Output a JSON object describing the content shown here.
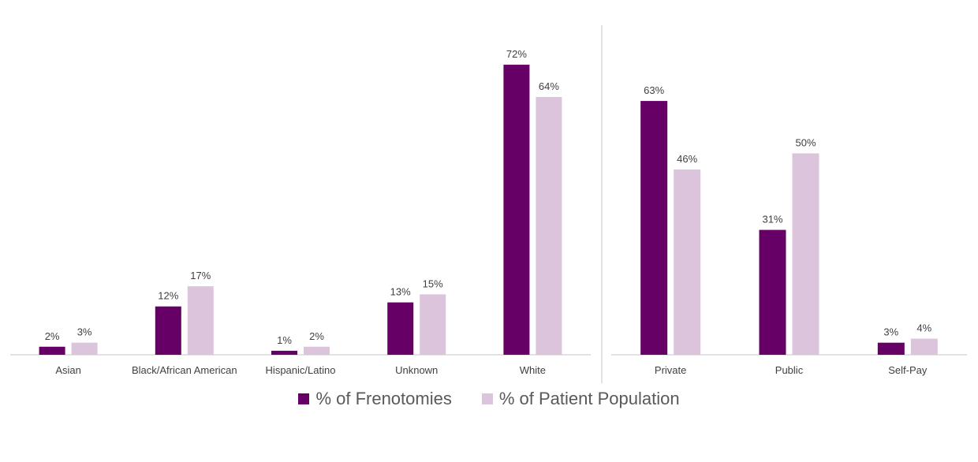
{
  "colors": {
    "frenotomies": "#660066",
    "patient_population": "#dcc4dc",
    "axis": "#d9d9d9",
    "text": "#404040"
  },
  "legend": {
    "items": [
      {
        "label": "% of Frenotomies"
      },
      {
        "label": "% of Patient Population"
      }
    ],
    "position": "bottom"
  },
  "chart_data": [
    {
      "type": "bar",
      "categories": [
        "Asian",
        "Black/African American",
        "Hispanic/Latino",
        "Unknown",
        "White"
      ],
      "series": [
        {
          "name": "% of Frenotomies",
          "values": [
            2,
            12,
            1,
            13,
            72
          ],
          "labels": [
            "2%",
            "12%",
            "1%",
            "13%",
            "72%"
          ]
        },
        {
          "name": "% of Patient Population",
          "values": [
            3,
            17,
            2,
            15,
            64
          ],
          "labels": [
            "3%",
            "17%",
            "2%",
            "15%",
            "64%"
          ]
        }
      ],
      "ylim": [
        0,
        72
      ],
      "grid": false
    },
    {
      "type": "bar",
      "categories": [
        "Private",
        "Public",
        "Self-Pay"
      ],
      "series": [
        {
          "name": "% of Frenotomies",
          "values": [
            63,
            31,
            3
          ],
          "labels": [
            "63%",
            "31%",
            "3%"
          ]
        },
        {
          "name": "% of Patient Population",
          "values": [
            46,
            50,
            4
          ],
          "labels": [
            "46%",
            "50%",
            "4%"
          ]
        }
      ],
      "ylim": [
        0,
        63
      ],
      "grid": false
    }
  ]
}
